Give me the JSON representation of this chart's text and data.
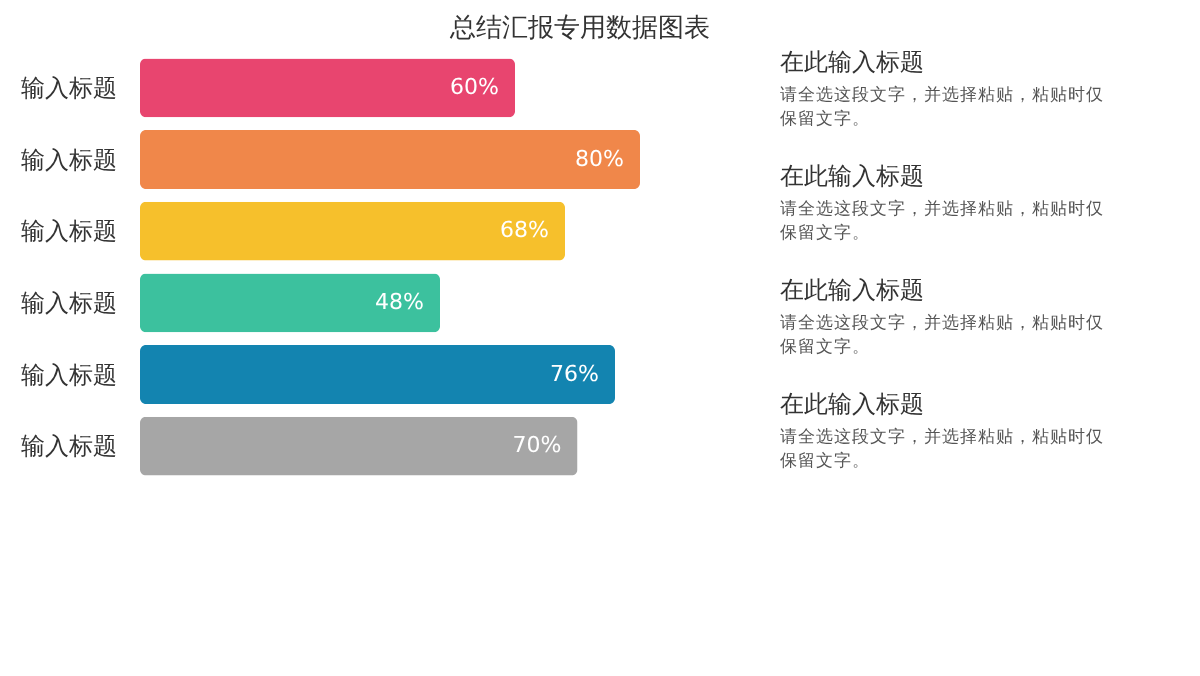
{
  "chart_data": {
    "type": "bar",
    "orientation": "horizontal",
    "title": "总结汇报专用数据图表",
    "categories": [
      "输入标题",
      "输入标题",
      "输入标题",
      "输入标题",
      "输入标题",
      "输入标题"
    ],
    "values": [
      60,
      80,
      68,
      48,
      76,
      70
    ],
    "value_labels": [
      "60%",
      "80%",
      "68%",
      "48%",
      "76%",
      "70%"
    ],
    "colors": [
      "#e8456f",
      "#f0874a",
      "#f6c02c",
      "#3cc19e",
      "#1384b0",
      "#a6a6a6"
    ],
    "tick_labels": "y",
    "annotations": [
      "在此输入标题",
      "请全选这段文字，并选择粘贴，粘贴时仅保留文字。",
      "在此输入标题",
      "请全选这段文字，并选择粘贴，粘贴时仅保留文字。",
      "在此输入标题",
      "请全选这段文字，并选择粘贴，粘贴时仅保留文字。",
      "在此输入标题",
      "请全选这段文字，并选择粘贴，粘贴时仅保留文字。"
    ]
  }
}
